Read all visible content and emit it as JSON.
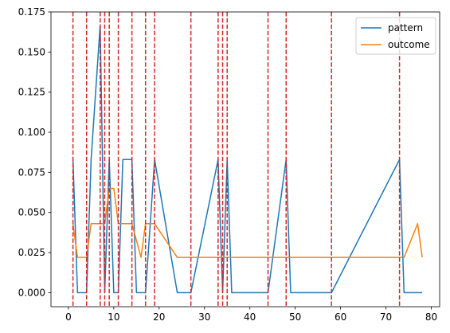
{
  "chart_data": {
    "type": "line",
    "title": "",
    "xlabel": "",
    "ylabel": "",
    "xlim": [
      -3.85,
      81.85
    ],
    "ylim": [
      -0.00875,
      0.175
    ],
    "x_ticks": [
      0,
      10,
      20,
      30,
      40,
      50,
      60,
      70,
      80
    ],
    "y_ticks": [
      0.0,
      0.025,
      0.05,
      0.075,
      0.1,
      0.125,
      0.15,
      0.175
    ],
    "x_tick_labels": [
      "0",
      "10",
      "20",
      "30",
      "40",
      "50",
      "60",
      "70",
      "80"
    ],
    "y_tick_labels": [
      "0.000",
      "0.025",
      "0.050",
      "0.075",
      "0.100",
      "0.125",
      "0.150",
      "0.175"
    ],
    "grid": false,
    "legend_position": "upper-right",
    "series": [
      {
        "name": "pattern",
        "color": "#1f77b4",
        "points": [
          [
            1,
            0.083
          ],
          [
            2,
            0.0
          ],
          [
            4,
            0.0
          ],
          [
            5,
            0.083
          ],
          [
            7,
            0.167
          ],
          [
            8,
            0.0
          ],
          [
            9,
            0.083
          ],
          [
            10,
            0.0
          ],
          [
            11,
            0.0
          ],
          [
            12,
            0.083
          ],
          [
            14,
            0.083
          ],
          [
            15,
            0.0
          ],
          [
            17,
            0.0
          ],
          [
            19,
            0.083
          ],
          [
            24,
            0.0
          ],
          [
            27,
            0.0
          ],
          [
            33,
            0.083
          ],
          [
            34,
            0.0
          ],
          [
            35,
            0.083
          ],
          [
            36,
            0.0
          ],
          [
            44,
            0.0
          ],
          [
            48,
            0.083
          ],
          [
            49,
            0.0
          ],
          [
            58,
            0.0
          ],
          [
            73,
            0.083
          ],
          [
            74,
            0.0
          ],
          [
            78,
            0.0
          ]
        ]
      },
      {
        "name": "outcome",
        "color": "#ff7f0e",
        "points": [
          [
            1,
            0.043
          ],
          [
            2,
            0.022
          ],
          [
            4,
            0.022
          ],
          [
            5,
            0.043
          ],
          [
            7,
            0.043
          ],
          [
            8,
            0.043
          ],
          [
            9,
            0.065
          ],
          [
            10,
            0.065
          ],
          [
            11,
            0.043
          ],
          [
            14,
            0.043
          ],
          [
            16,
            0.022
          ],
          [
            17,
            0.043
          ],
          [
            19,
            0.043
          ],
          [
            24,
            0.022
          ],
          [
            74,
            0.022
          ],
          [
            77,
            0.043
          ],
          [
            78,
            0.022
          ]
        ]
      }
    ],
    "vlines": {
      "color": "#d62728",
      "style": "dashed",
      "x": [
        1,
        4,
        7,
        8,
        9,
        11,
        14,
        17,
        19,
        27,
        33,
        34,
        35,
        44,
        48,
        58,
        73
      ]
    }
  }
}
